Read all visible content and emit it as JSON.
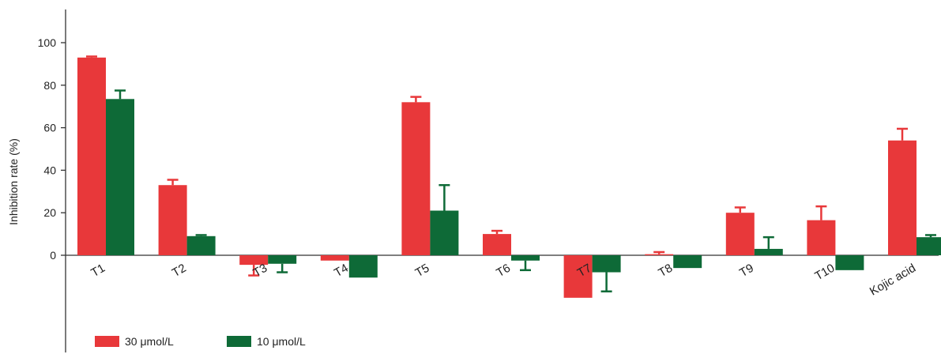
{
  "chart_data": {
    "type": "bar",
    "title": "",
    "xlabel": "",
    "ylabel": "Inhibition rate (%)",
    "ylim": [
      -20,
      110
    ],
    "yticks": [
      0,
      20,
      40,
      60,
      80,
      100
    ],
    "grid": false,
    "legend_position": "bottom-left",
    "categories": [
      "T1",
      "T2",
      "T3",
      "T4",
      "T5",
      "T6",
      "T7",
      "T8",
      "T9",
      "T10",
      "Kojic acid"
    ],
    "series": [
      {
        "name": "30 μmol/L",
        "color": "#e8383a",
        "values": [
          93,
          33,
          -4.5,
          -2.5,
          72,
          10,
          -20,
          0.5,
          20,
          16.5,
          54
        ],
        "errors": [
          0.5,
          2.5,
          5,
          0,
          2.5,
          1.5,
          0,
          1,
          2.5,
          6.5,
          5.5
        ]
      },
      {
        "name": "10 μmol/L",
        "color": "#0e6a37",
        "values": [
          73.5,
          9,
          -4,
          -10.5,
          21,
          -2.5,
          -8,
          -6,
          3,
          -7,
          8.5
        ],
        "errors": [
          4,
          0.5,
          4,
          0,
          12,
          4.5,
          9,
          0,
          5.5,
          0,
          1
        ]
      }
    ]
  }
}
